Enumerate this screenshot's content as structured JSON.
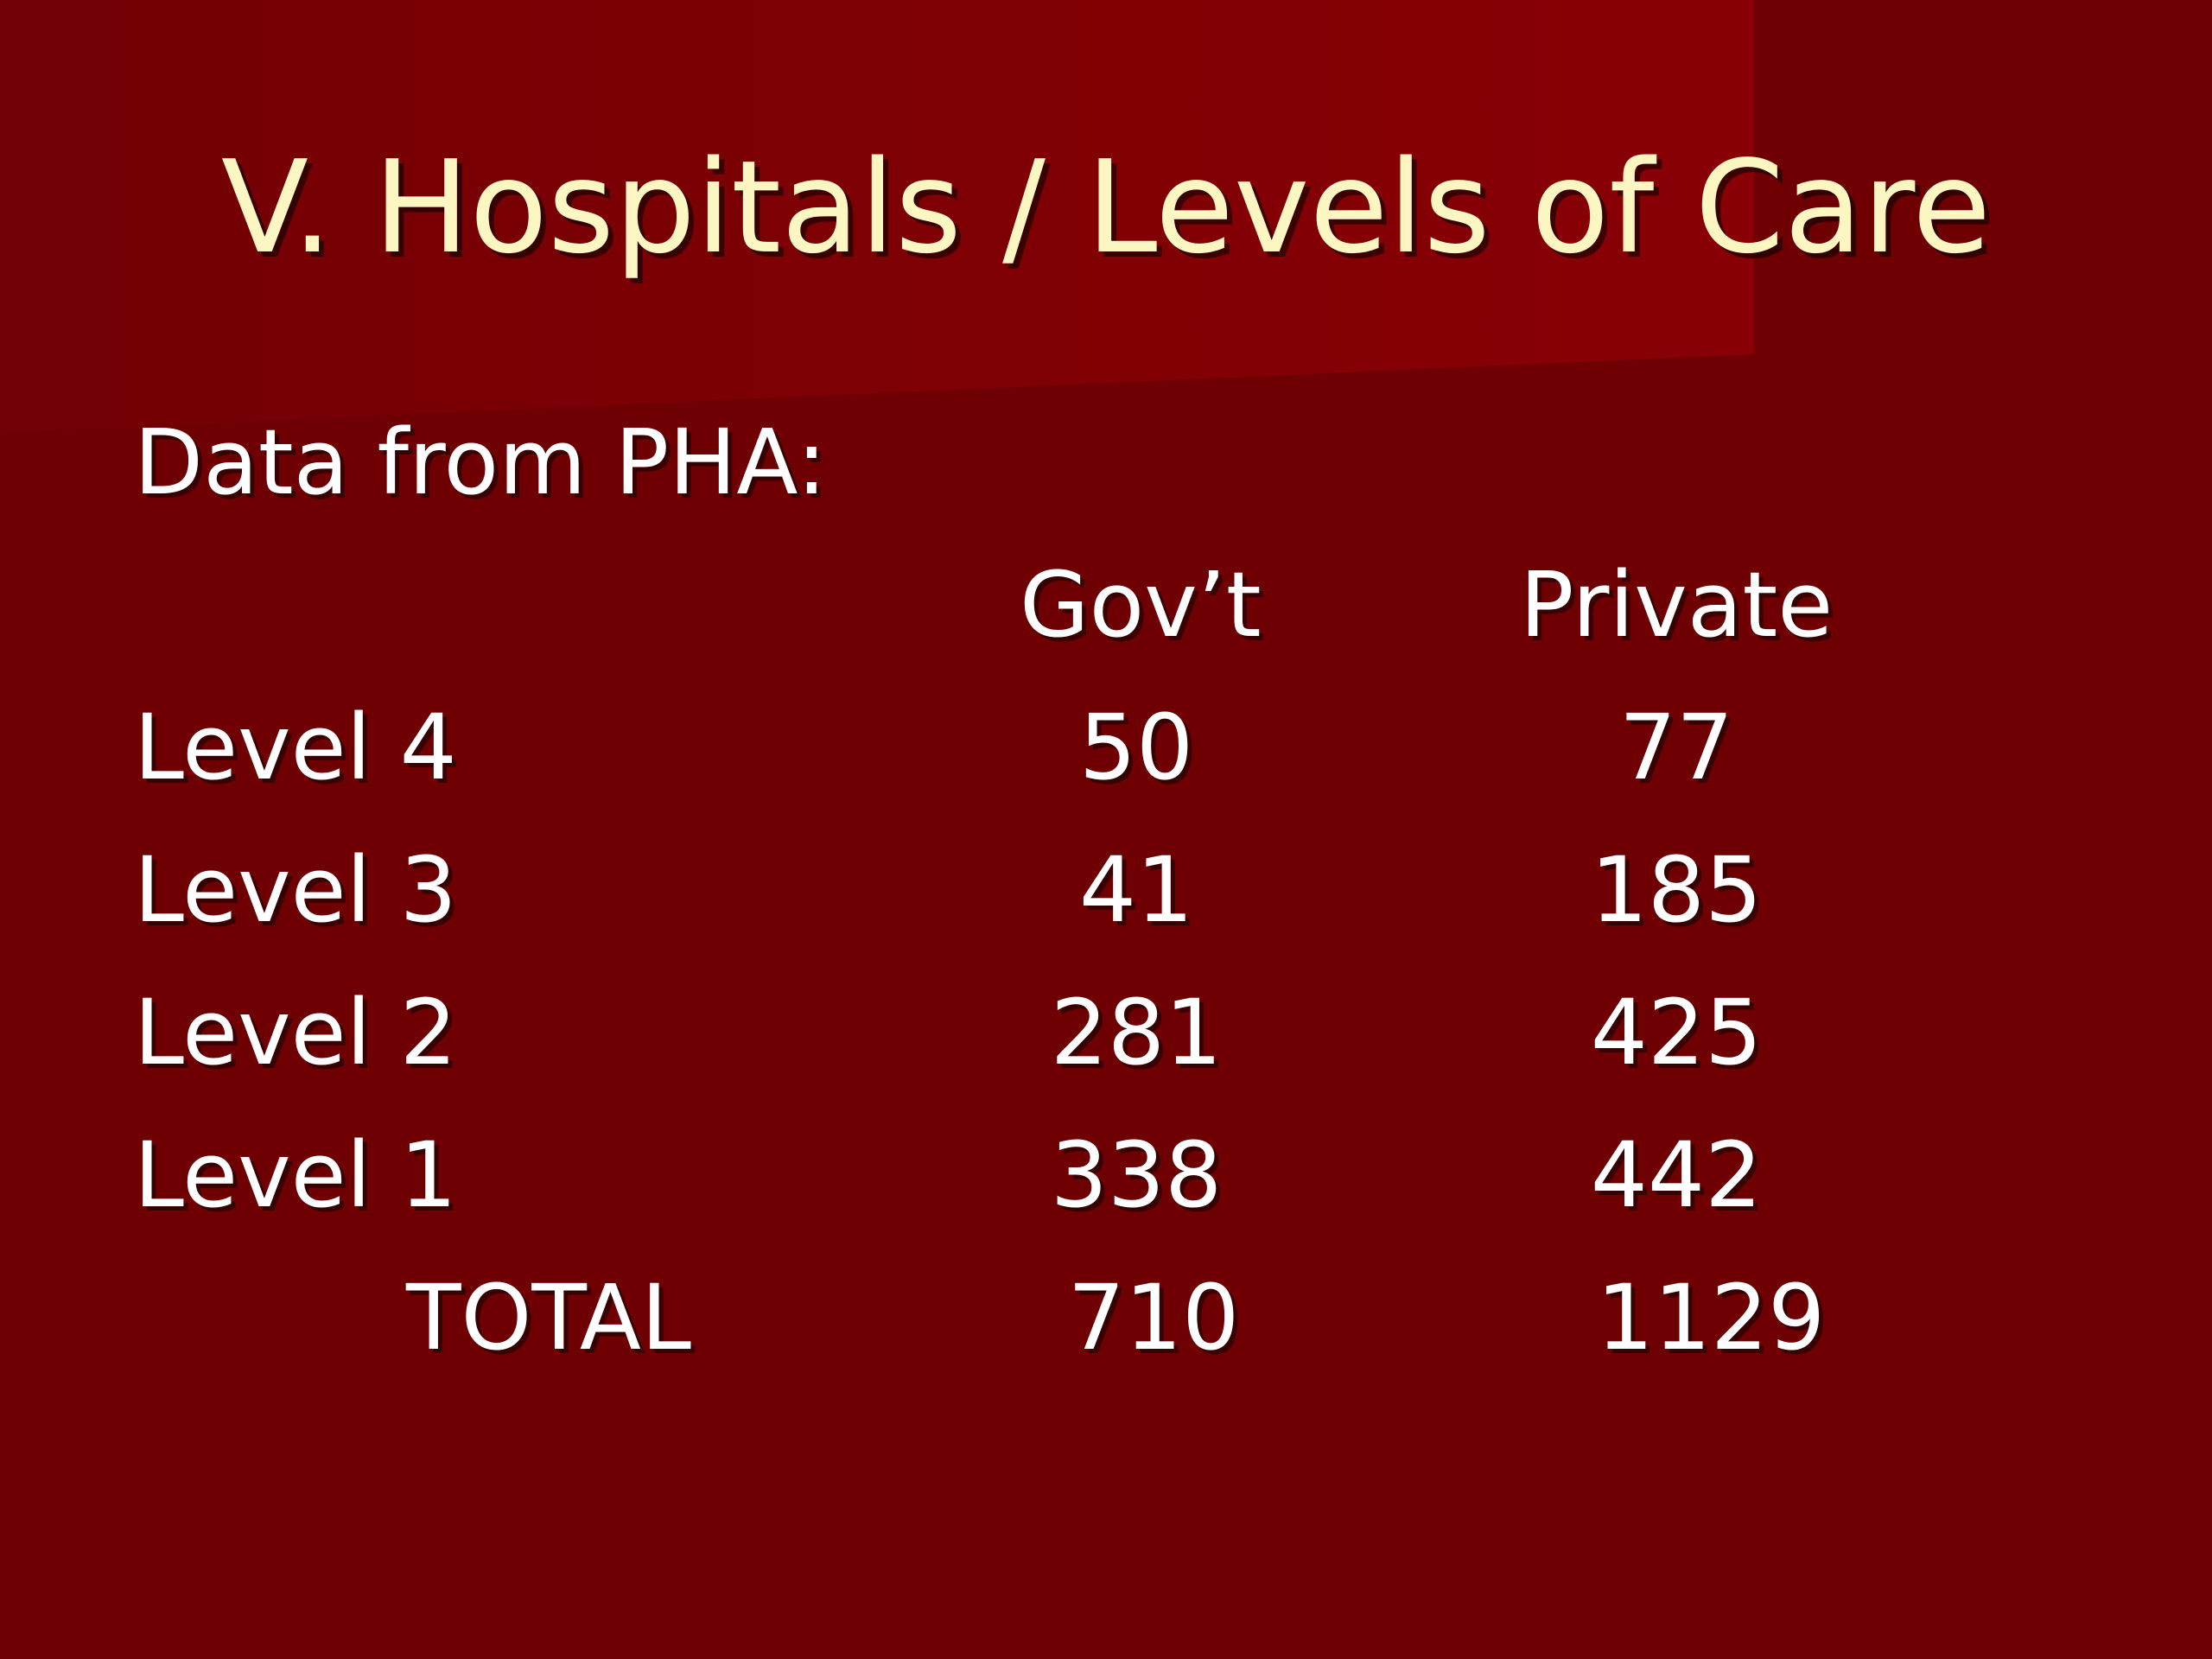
{
  "slide": {
    "title": "V. Hospitals / Levels of Care",
    "intro": "Data from PHA:"
  },
  "table": {
    "headers": {
      "gov": "Gov’t",
      "private": "Private"
    },
    "rows": [
      {
        "label": "Level 4",
        "gov": "50",
        "private": "77"
      },
      {
        "label": "Level 3",
        "gov": "41",
        "private": "185"
      },
      {
        "label": "Level 2",
        "gov": "281",
        "private": "425"
      },
      {
        "label": "Level 1",
        "gov": "338",
        "private": "442"
      }
    ],
    "total": {
      "label": "TOTAL",
      "gov": "710",
      "private": "1129"
    }
  },
  "colors": {
    "background": "#6e0003",
    "title_text": "#fcf6c2",
    "body_text": "#ffffff"
  }
}
